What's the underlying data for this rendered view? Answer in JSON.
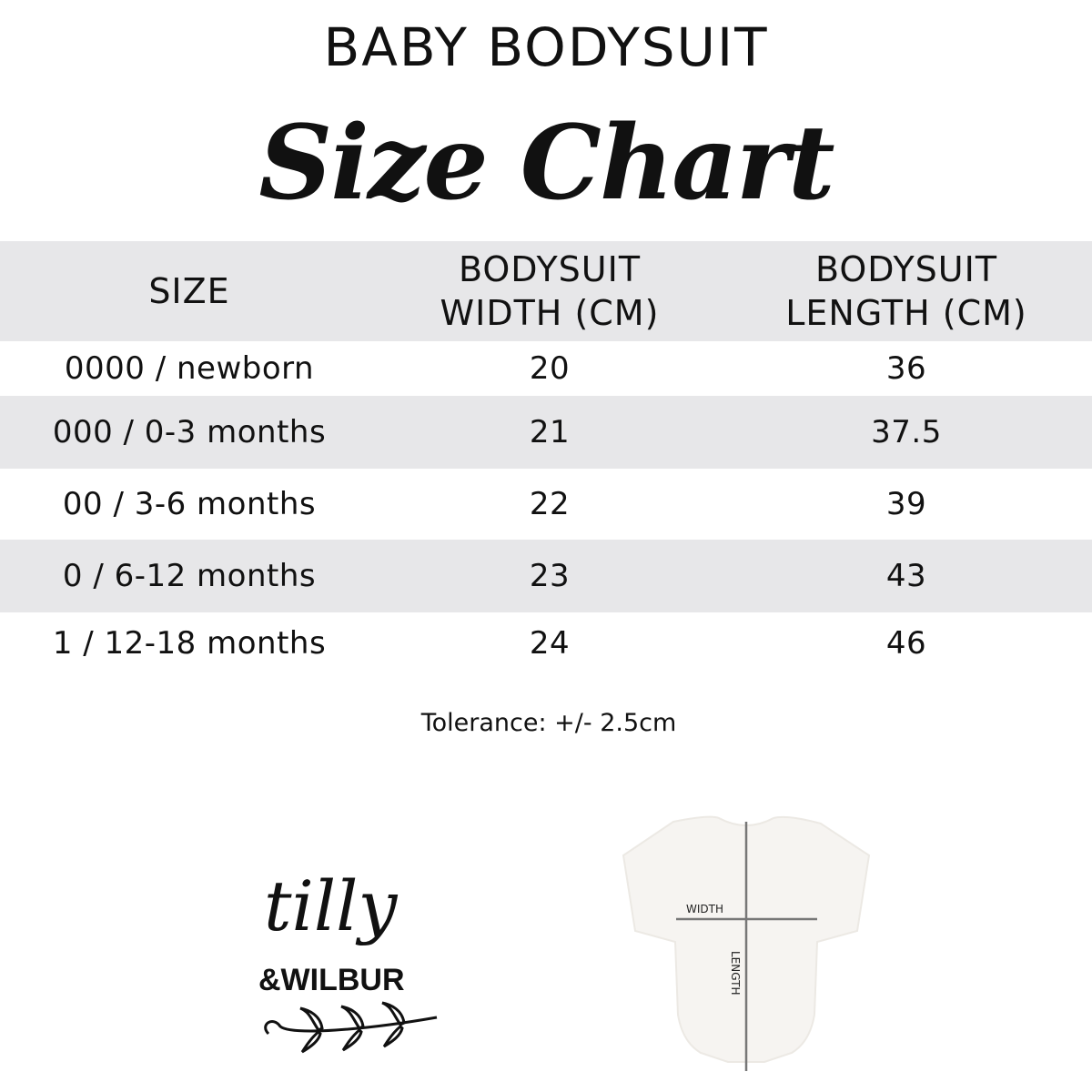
{
  "header": {
    "title": "BABY BODYSUIT",
    "subtitle": "Size Chart"
  },
  "table": {
    "columns": [
      "SIZE",
      "BODYSUIT WIDTH (CM)",
      "BODYSUIT LENGTH (CM)"
    ],
    "column_lines": [
      [
        "SIZE"
      ],
      [
        "BODYSUIT",
        "WIDTH (CM)"
      ],
      [
        "BODYSUIT",
        "LENGTH (CM)"
      ]
    ],
    "rows": [
      {
        "size": "0000 / newborn",
        "width": "20",
        "length": "36"
      },
      {
        "size": "000 / 0-3 months",
        "width": "21",
        "length": "37.5"
      },
      {
        "size": "00 / 3-6 months",
        "width": "22",
        "length": "39"
      },
      {
        "size": "0 / 6-12 months",
        "width": "23",
        "length": "43"
      },
      {
        "size": "1 / 12-18 months",
        "width": "24",
        "length": "46"
      }
    ]
  },
  "note": "Tolerance: +/- 2.5cm",
  "logo": {
    "line1": "tilly",
    "line2": "&WILBUR"
  },
  "diagram": {
    "width_label": "WIDTH",
    "length_label": "LENGTH"
  },
  "colors": {
    "band": "#e7e7e9",
    "text": "#111111"
  }
}
